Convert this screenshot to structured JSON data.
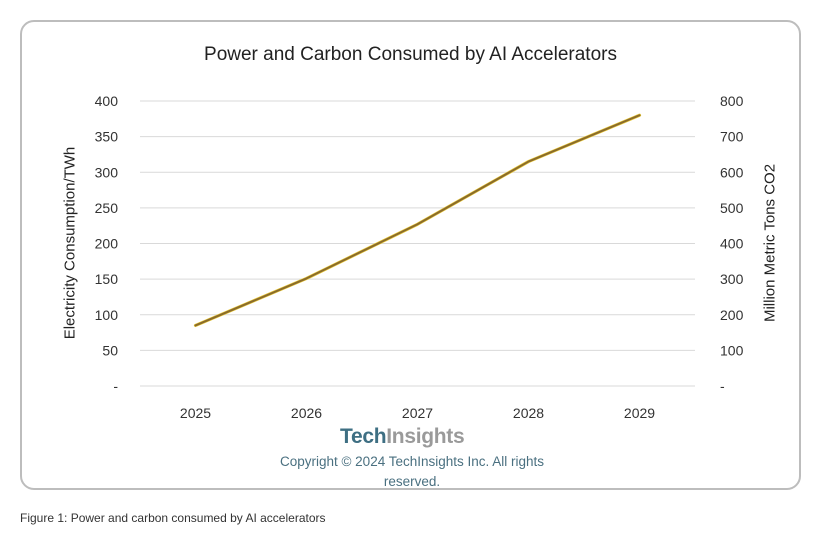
{
  "chart_data": {
    "type": "line",
    "title": "Power and Carbon Consumed by AI Accelerators",
    "categories": [
      "2025",
      "2026",
      "2027",
      "2028",
      "2029"
    ],
    "series": [
      {
        "values": [
          85,
          151,
          227,
          315,
          380
        ],
        "axis": "left",
        "color": "#8a6b2a"
      },
      {
        "values": [
          170,
          302,
          454,
          630,
          760
        ],
        "axis": "right",
        "color": "#e8c838"
      }
    ],
    "ylabel_left": "Electricity Consumption/TWh",
    "ylabel_right": "Million Metric Tons CO2",
    "ylim_left": [
      0,
      400
    ],
    "ylim_right": [
      0,
      800
    ],
    "yticks_left": [
      "-",
      "50",
      "100",
      "150",
      "200",
      "250",
      "300",
      "350",
      "400"
    ],
    "yticks_right": [
      "-",
      "100",
      "200",
      "300",
      "400",
      "500",
      "600",
      "700",
      "800"
    ],
    "grid": true,
    "legend": "none"
  },
  "watermark": {
    "logo_part1": "Tech",
    "logo_part2": "Insights",
    "copyright_line1": "Copyright © 2024 TechInsights Inc.  All rights",
    "copyright_line2": "reserved."
  },
  "caption": "Figure 1: Power and carbon consumed by AI accelerators"
}
